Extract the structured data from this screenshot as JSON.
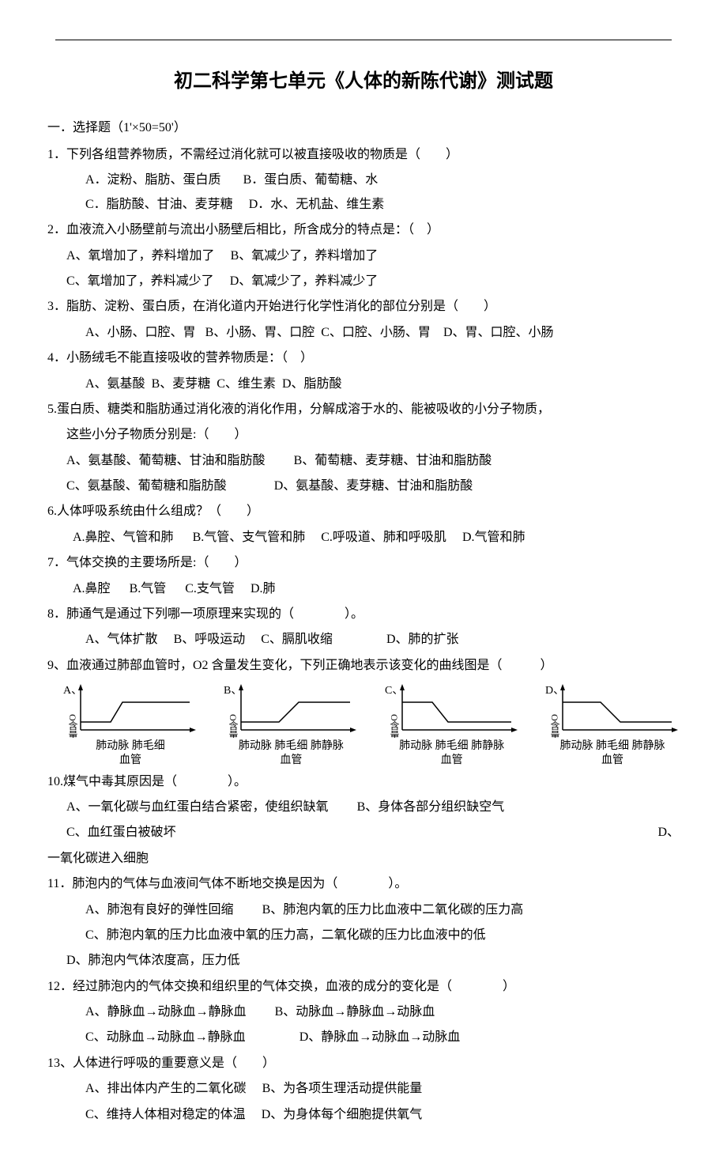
{
  "title": "初二科学第七单元《人体的新陈代谢》测试题",
  "section1": "一．选择题（1'×50=50'）",
  "q1": {
    "stem": "1．下列各组营养物质，不需经过消化就可以被直接吸收的物质是（　　）",
    "a": "A．淀粉、脂肪、蛋白质",
    "b": "B．蛋白质、葡萄糖、水",
    "c": "C．脂肪酸、甘油、麦芽糖",
    "d": "D．水、无机盐、维生素"
  },
  "q2": {
    "stem": "2．血液流入小肠壁前与流出小肠壁后相比，所含成分的特点是：（　）",
    "a": "A、氧增加了，养料增加了",
    "b": "B、氧减少了，养料增加了",
    "c": "C、氧增加了，养料减少了",
    "d": "D、氧减少了，养料减少了"
  },
  "q3": {
    "stem": "3．脂肪、淀粉、蛋白质，在消化道内开始进行化学性消化的部位分别是（　　）",
    "a": "A、小肠、口腔、胃",
    "b": "B、小肠、胃、口腔",
    "c": "C、口腔、小肠、胃",
    "d": "D、胃、口腔、小肠"
  },
  "q4": {
    "stem": "4．小肠绒毛不能直接吸收的营养物质是：（　）",
    "a": "A、氨基酸",
    "b": "B、麦芽糖",
    "c": "C、维生素",
    "d": "D、脂肪酸"
  },
  "q5": {
    "stem1": "5.蛋白质、糖类和脂肪通过消化液的消化作用，分解成溶于水的、能被吸收的小分子物质，",
    "stem2": "这些小分子物质分别是:（　　）",
    "a": "A、氨基酸、葡萄糖、甘油和脂肪酸",
    "b": "B、葡萄糖、麦芽糖、甘油和脂肪酸",
    "c": "C、氨基酸、葡萄糖和脂肪酸",
    "d": "D、氨基酸、麦芽糖、甘油和脂肪酸"
  },
  "q6": {
    "stem": "6.人体呼吸系统由什么组成？（　　）",
    "a": "A.鼻腔、气管和肺",
    "b": "B.气管、支气管和肺",
    "c": "C.呼吸道、肺和呼吸肌",
    "d": "D.气管和肺"
  },
  "q7": {
    "stem": "7．气体交换的主要场所是:（　　）",
    "a": "A.鼻腔",
    "b": "B.气管",
    "c": "C.支气管",
    "d": "D.肺"
  },
  "q8": {
    "stem": "8．肺通气是通过下列哪一项原理来实现的（　　　　）。",
    "a": "A、气体扩散",
    "b": "B、呼吸运动",
    "c": "C、膈肌收缩",
    "d": "D、肺的扩张"
  },
  "q9": {
    "stem": "9、血液通过肺部血管时，O2 含量发生变化，下列正确地表示该变化的曲线图是（　　　）",
    "ylabel": "O含量",
    "xlabel1": "肺动脉 肺毛细",
    "xlabel1b": "血管",
    "xlabel2": "肺动脉 肺毛细 肺静脉",
    "xlabel2b": "血管",
    "A": "A、",
    "B": "B、",
    "C": "C、",
    "D": "D、",
    "chart": {
      "width": 170,
      "height": 70,
      "axis_color": "#000000",
      "line_color": "#000000",
      "line_width": 1.5,
      "ylabel_fontsize": 12,
      "A_path": [
        [
          22,
          50
        ],
        [
          60,
          50
        ],
        [
          75,
          25
        ],
        [
          160,
          25
        ]
      ],
      "B_path": [
        [
          22,
          50
        ],
        [
          70,
          50
        ],
        [
          95,
          25
        ],
        [
          160,
          25
        ]
      ],
      "C_path": [
        [
          22,
          25
        ],
        [
          60,
          25
        ],
        [
          80,
          50
        ],
        [
          160,
          50
        ]
      ],
      "D_path": [
        [
          22,
          25
        ],
        [
          70,
          25
        ],
        [
          95,
          50
        ],
        [
          160,
          50
        ]
      ]
    }
  },
  "q10": {
    "stem": "10.煤气中毒其原因是（　　　　）。",
    "a": "A、一氧化碳与血红蛋白结合紧密，使组织缺氧",
    "b": "B、身体各部分组织缺空气",
    "c": "C、血红蛋白被破坏",
    "d": "D、",
    "dline": "一氧化碳进入细胞"
  },
  "q11": {
    "stem": "11．肺泡内的气体与血液间气体不断地交换是因为（　　　　）。",
    "a": "A、肺泡有良好的弹性回缩",
    "b": "B、肺泡内氧的压力比血液中二氧化碳的压力高",
    "c": "C、肺泡内氧的压力比血液中氧的压力高，二氧化碳的压力比血液中的低",
    "d": "D、肺泡内气体浓度高，压力低"
  },
  "q12": {
    "stem": "12．经过肺泡内的气体交换和组织里的气体交换，血液的成分的变化是（　　　　）",
    "a": "A、静脉血→动脉血→静脉血",
    "b": "B、动脉血→静脉血→动脉血",
    "c": "C、动脉血→动脉血→静脉血",
    "d": "D、静脉血→动脉血→动脉血"
  },
  "q13": {
    "stem": "13、人体进行呼吸的重要意义是（　　）",
    "a": "A、排出体内产生的二氧化碳",
    "b": "B、为各项生理活动提供能量",
    "c": "C、维持人体相对稳定的体温",
    "d": "D、为身体每个细胞提供氧气"
  }
}
